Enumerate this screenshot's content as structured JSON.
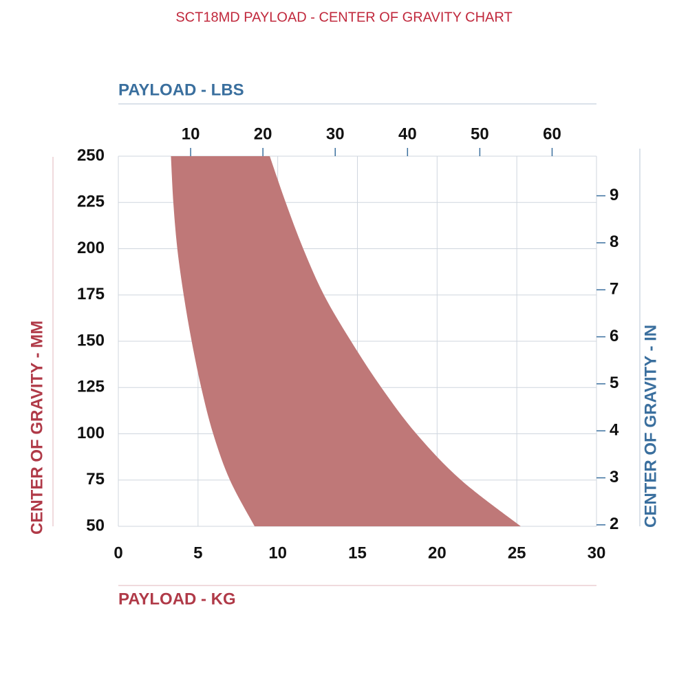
{
  "chart_data": {
    "type": "range-area",
    "title": "SCT18MD PAYLOAD - CENTER OF GRAVITY CHART",
    "x_label": "PAYLOAD - KG",
    "x2_label": "PAYLOAD - LBS",
    "y_label": "CENTER OF GRAVITY - MM",
    "y2_label": "CENTER OF GRAVITY - IN",
    "xlim": [
      0,
      30
    ],
    "xticks": [
      0,
      5,
      10,
      15,
      20,
      25,
      30
    ],
    "x2lim": [
      0,
      66.14
    ],
    "x2ticks": [
      10,
      20,
      30,
      40,
      50,
      60
    ],
    "ylim": [
      50,
      250
    ],
    "yticks": [
      50,
      75,
      100,
      125,
      150,
      175,
      200,
      225,
      250
    ],
    "y2lim": [
      1.9685,
      9.8425
    ],
    "y2ticks": [
      2,
      3,
      4,
      5,
      6,
      7,
      8,
      9
    ],
    "y": [
      50,
      75,
      100,
      125,
      150,
      175,
      200,
      225,
      250
    ],
    "x_low": [
      8.55,
      7.0,
      5.95,
      5.2,
      4.6,
      4.1,
      3.7,
      3.45,
      3.3
    ],
    "x_high": [
      25.25,
      21.5,
      18.7,
      16.5,
      14.6,
      12.9,
      11.6,
      10.5,
      9.5
    ],
    "color": "#bf7878",
    "grid": true
  }
}
